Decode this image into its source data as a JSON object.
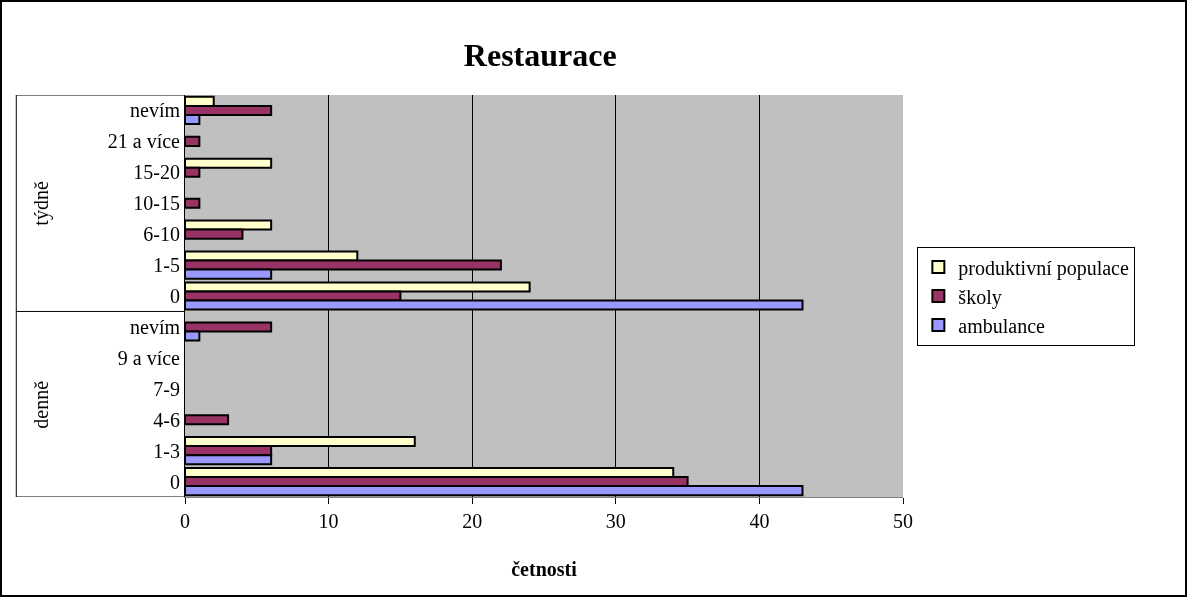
{
  "chart_data": {
    "type": "bar",
    "orientation": "horizontal",
    "title": "Restaurace",
    "xlabel": "četnosti",
    "categories": [
      "nevím",
      "21 a více",
      "15-20",
      "10-15",
      "6-10",
      "1-5",
      "0",
      "nevím",
      "9 a více",
      "7-9",
      "4-6",
      "1-3",
      "0"
    ],
    "annotations": [
      "týdně",
      "denně"
    ],
    "series": [
      {
        "name": "produktivní populace",
        "color": "#ffffcc",
        "values": [
          2,
          0,
          6,
          0,
          6,
          12,
          24,
          0,
          0,
          0,
          0,
          16,
          34
        ]
      },
      {
        "name": "školy",
        "color": "#993366",
        "values": [
          6,
          1,
          1,
          1,
          4,
          22,
          15,
          6,
          0,
          0,
          3,
          6,
          35
        ]
      },
      {
        "name": "ambulance",
        "color": "#9999ff",
        "values": [
          1,
          0,
          0,
          0,
          0,
          6,
          43,
          1,
          0,
          0,
          0,
          6,
          43
        ]
      }
    ],
    "xlim": [
      0,
      50
    ],
    "xticks": [
      0,
      10,
      20,
      30,
      40,
      50
    ],
    "grid": "x",
    "legend": "right"
  }
}
